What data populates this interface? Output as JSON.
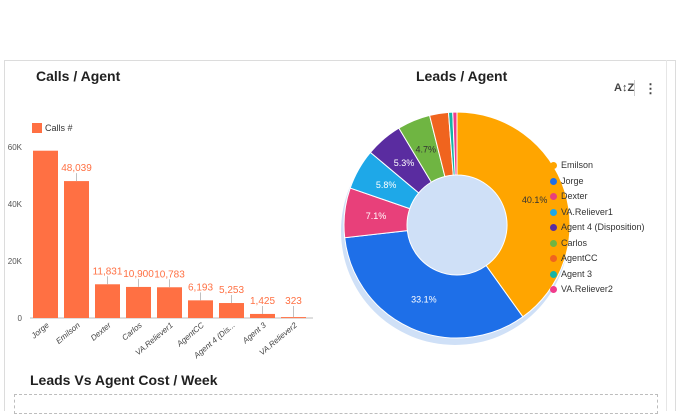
{
  "titles": {
    "calls": "Calls / Agent",
    "leads": "Leads / Agent",
    "cost": "Leads Vs Agent Cost / Week"
  },
  "toolbar": {
    "sort_label": "A↕Z",
    "menu_label": "⋮"
  },
  "colors": {
    "bar": "#ff7043",
    "bar_value_text": "#ff7043"
  },
  "chart_data": [
    {
      "type": "bar",
      "title": "Calls / Agent",
      "legend": {
        "entries": [
          "Calls #"
        ],
        "position": "top-left"
      },
      "categories": [
        "Jorge",
        "Emilson",
        "Dexter",
        "Carlos",
        "VA.Reliever1",
        "AgentCC",
        "Agent 4 (Dis...",
        "Agent 3",
        "VA.Reliever2"
      ],
      "series": [
        {
          "name": "Calls #",
          "values": [
            58700,
            48039,
            11831,
            10900,
            10783,
            6193,
            5253,
            1425,
            323
          ]
        }
      ],
      "data_labels": [
        "",
        "48,039",
        "11,831",
        "10,900",
        "10,783",
        "6,193",
        "5,253",
        "1,425",
        "323"
      ],
      "yticks": [
        "0",
        "20K",
        "40K",
        "60K"
      ],
      "ylim": [
        0,
        60000
      ],
      "grid": false
    },
    {
      "type": "pie",
      "title": "Leads / Agent",
      "donut": true,
      "legend": {
        "position": "right"
      },
      "labels": [
        "Emilson",
        "Jorge",
        "Dexter",
        "VA.Reliever1",
        "Agent 4 (Disposition)",
        "Carlos",
        "AgentCC",
        "Agent 3",
        "VA.Reliever2"
      ],
      "values": [
        40.1,
        33.1,
        7.1,
        5.8,
        5.3,
        4.7,
        2.7,
        0.6,
        0.6
      ],
      "slice_labels": [
        "40.1%",
        "33.1%",
        "7.1%",
        "5.8%",
        "5.3%",
        "4.7%",
        "",
        "",
        ""
      ],
      "colors": [
        "#ffa500",
        "#1e6fe8",
        "#e8407a",
        "#1ea8e8",
        "#5a2ca0",
        "#6fb542",
        "#f0641e",
        "#14b4a6",
        "#f03c8c"
      ]
    }
  ]
}
